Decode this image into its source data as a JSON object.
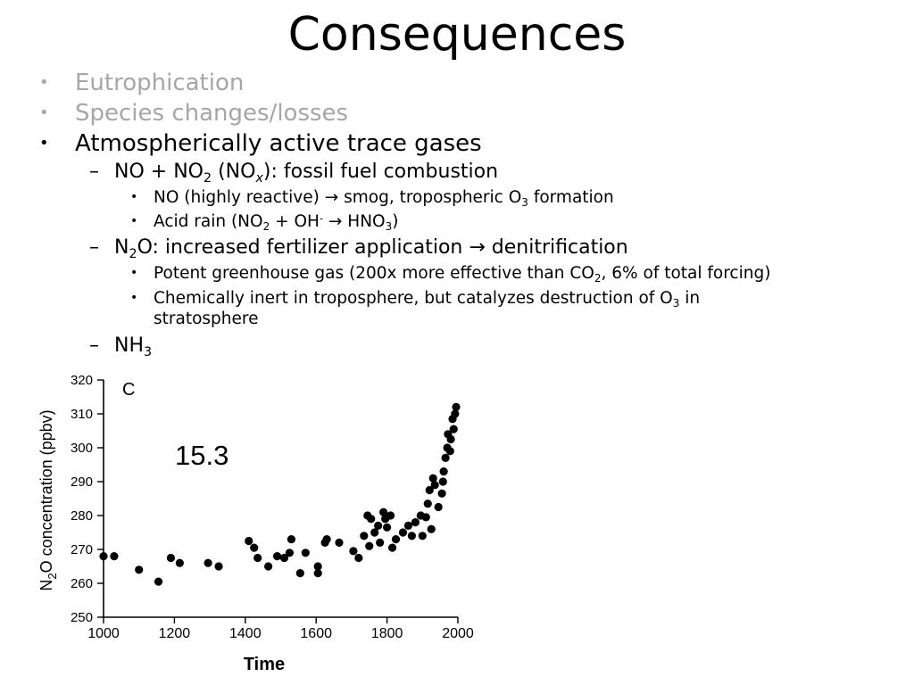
{
  "slide": {
    "title": "Consequences",
    "bullet_char": "•",
    "dash_char": "–",
    "arrow_char": "→",
    "bullets": [
      {
        "text": "Eutrophication",
        "color": "#a6a6a6"
      },
      {
        "text": "Species changes/losses",
        "color": "#a6a6a6"
      },
      {
        "text": "Atmospherically active trace gases",
        "color": "#000000"
      }
    ],
    "nox": {
      "pre": "NO + NO",
      "sub1": "2",
      "mid": " (NO",
      "subx": "x",
      "post": "):  fossil fuel combustion"
    },
    "nox_points": {
      "p1": {
        "pre": "NO (highly reactive) ",
        "mid": " smog, tropospheric O",
        "sub": "3",
        "post": " formation"
      },
      "p2": {
        "pre": "Acid rain (NO",
        "sub1": "2",
        "mid1": " + OH",
        "sup": "-",
        "mid2": " ",
        "mid3": " HNO",
        "sub2": "3",
        "post": ")"
      }
    },
    "n2o": {
      "pre": "N",
      "sub": "2",
      "post": "O: increased fertilizer application ",
      "post2": " denitrification"
    },
    "n2o_points": {
      "p1": {
        "pre": "Potent greenhouse gas (200x more effective than CO",
        "sub": "2",
        "post": ", 6% of total forcing)"
      },
      "p2": {
        "line1_pre": "Chemically inert in troposphere, but catalyzes destruction of O",
        "line1_sub": "3",
        "line1_post": " in",
        "line2": "stratosphere"
      }
    },
    "nh3": {
      "pre": "NH",
      "sub": "3"
    }
  },
  "chart_data": {
    "type": "scatter",
    "panel_label": "C",
    "annotation": "15.3",
    "xlabel": "Time",
    "ylabel": "N2O concentration (ppbv)",
    "ylabel_parts": {
      "pre": "N",
      "sub": "2",
      "post": "O concentration (ppbv)"
    },
    "xlim": [
      1000,
      2000
    ],
    "ylim": [
      250,
      320
    ],
    "xticks": [
      1000,
      1200,
      1400,
      1600,
      1800,
      2000
    ],
    "yticks": [
      250,
      260,
      270,
      280,
      290,
      300,
      310,
      320
    ],
    "grid": false,
    "point_color": "#000000",
    "points": [
      [
        1000,
        268
      ],
      [
        1030,
        268
      ],
      [
        1100,
        264
      ],
      [
        1155,
        260.5
      ],
      [
        1190,
        267.5
      ],
      [
        1215,
        266
      ],
      [
        1295,
        266
      ],
      [
        1325,
        265
      ],
      [
        1410,
        272.5
      ],
      [
        1425,
        270.5
      ],
      [
        1435,
        267.5
      ],
      [
        1465,
        265
      ],
      [
        1490,
        268
      ],
      [
        1510,
        267.5
      ],
      [
        1525,
        269
      ],
      [
        1530,
        273
      ],
      [
        1555,
        263
      ],
      [
        1570,
        269
      ],
      [
        1605,
        263
      ],
      [
        1605,
        265
      ],
      [
        1625,
        272
      ],
      [
        1630,
        273
      ],
      [
        1665,
        272
      ],
      [
        1705,
        269.5
      ],
      [
        1720,
        267.5
      ],
      [
        1735,
        274
      ],
      [
        1745,
        280
      ],
      [
        1750,
        271
      ],
      [
        1755,
        279
      ],
      [
        1765,
        275
      ],
      [
        1775,
        277
      ],
      [
        1780,
        272
      ],
      [
        1790,
        281
      ],
      [
        1795,
        279
      ],
      [
        1800,
        276.5
      ],
      [
        1810,
        280
      ],
      [
        1815,
        270.5
      ],
      [
        1825,
        273
      ],
      [
        1845,
        275
      ],
      [
        1860,
        277
      ],
      [
        1870,
        274
      ],
      [
        1880,
        278
      ],
      [
        1895,
        280
      ],
      [
        1900,
        274
      ],
      [
        1910,
        279.5
      ],
      [
        1915,
        283.5
      ],
      [
        1920,
        287.5
      ],
      [
        1925,
        276
      ],
      [
        1930,
        291
      ],
      [
        1935,
        289
      ],
      [
        1945,
        282.5
      ],
      [
        1955,
        286.5
      ],
      [
        1958,
        290
      ],
      [
        1960,
        293
      ],
      [
        1965,
        297
      ],
      [
        1970,
        300
      ],
      [
        1972,
        304
      ],
      [
        1978,
        299
      ],
      [
        1980,
        302.5
      ],
      [
        1985,
        308.5
      ],
      [
        1988,
        305.5
      ],
      [
        1992,
        310
      ],
      [
        1995,
        312
      ]
    ]
  }
}
